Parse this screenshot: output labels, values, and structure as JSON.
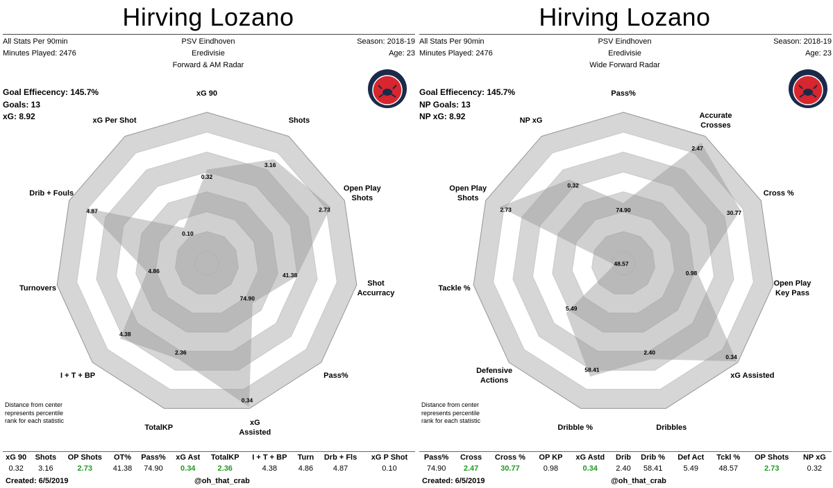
{
  "charts": [
    {
      "title": "Hirving Lozano",
      "header_left": [
        "All Stats Per 90min",
        "Minutes Played: 2476"
      ],
      "header_center": [
        "PSV Eindhoven",
        "Eredivisie",
        "Forward & AM Radar"
      ],
      "header_right": [
        "Season: 2018-19",
        "Age: 23"
      ],
      "stats": [
        "Goal Effiecency: 145.7%",
        "Goals: 13",
        "xG: 8.92"
      ],
      "note": [
        "Distance from center",
        "represents percentile",
        "rank for each statistic"
      ],
      "badge_text": "CRAB STATS",
      "table_headers": [
        "xG 90",
        "Shots",
        "OP Shots",
        "OT%",
        "Pass%",
        "xG Ast",
        "TotalKP",
        "I + T + BP",
        "Turn",
        "Drb + Fls",
        "xG P Shot"
      ],
      "table_values": [
        "0.32",
        "3.16",
        "2.73",
        "41.38",
        "74.90",
        "0.34",
        "2.36",
        "4.38",
        "4.86",
        "4.87",
        "0.10"
      ],
      "table_highlight": [
        false,
        false,
        true,
        false,
        false,
        true,
        true,
        false,
        false,
        false,
        false
      ],
      "created": "Created: 6/5/2019",
      "handle": "@oh_that_crab",
      "chart_data": {
        "type": "radar",
        "axes": [
          "xG 90",
          "Shots",
          "Open Play\nShots",
          "Shot\nAccurracy",
          "Pass%",
          "xG\nAssisted",
          "TotalKP",
          "I + T + BP",
          "Turnovers",
          "Drib + Fouls",
          "xG Per Shot"
        ],
        "values": [
          "0.32",
          "3.16",
          "2.73",
          "41.38",
          "74.90",
          "0.34",
          "2.36",
          "4.38",
          "4.86",
          "4.87",
          "0.10"
        ],
        "percentiles": [
          0.62,
          0.82,
          0.9,
          0.6,
          0.4,
          0.99,
          0.66,
          0.76,
          0.4,
          0.88,
          0.28
        ],
        "rings": 7
      }
    },
    {
      "title": "Hirving Lozano",
      "header_left": [
        "All Stats Per 90min",
        "Minutes Played: 2476"
      ],
      "header_center": [
        "PSV Eindhoven",
        "Eredivisie",
        "Wide Forward Radar"
      ],
      "header_right": [
        "Season: 2018-19",
        "Age: 23"
      ],
      "stats": [
        "Goal Effiecency: 145.7%",
        "NP Goals: 13",
        "NP xG: 8.92"
      ],
      "note": [
        "Distance from center",
        "represents percentile",
        "rank for each statistic"
      ],
      "badge_text": "CRAB STATS",
      "table_headers": [
        "Pass%",
        "Cross",
        "Cross %",
        "OP KP",
        "xG Astd",
        "Drib",
        "Drib %",
        "Def Act",
        "Tckl %",
        "OP Shots",
        "NP xG"
      ],
      "table_values": [
        "74.90",
        "2.47",
        "30.77",
        "0.98",
        "0.34",
        "2.40",
        "58.41",
        "5.49",
        "48.57",
        "2.73",
        "0.32"
      ],
      "table_highlight": [
        false,
        true,
        true,
        false,
        true,
        false,
        false,
        false,
        false,
        true,
        false
      ],
      "created": "Created: 6/5/2019",
      "handle": "@oh_that_crab",
      "chart_data": {
        "type": "radar",
        "axes": [
          "Pass%",
          "Accurate\nCrosses",
          "Cross %",
          "Open Play\nKey Pass",
          "xG Assisted",
          "Dribbles",
          "Dribble %",
          "Defensive\nActions",
          "Tackle %",
          "Open Play\nShots",
          "NP xG"
        ],
        "values": [
          "74.90",
          "2.47",
          "30.77",
          "0.98",
          "0.34",
          "2.40",
          "58.41",
          "5.49",
          "48.57",
          "2.73",
          "0.32"
        ],
        "percentiles": [
          0.4,
          0.95,
          0.85,
          0.5,
          0.99,
          0.66,
          0.78,
          0.5,
          0.06,
          0.9,
          0.66
        ],
        "rings": 7
      }
    }
  ]
}
